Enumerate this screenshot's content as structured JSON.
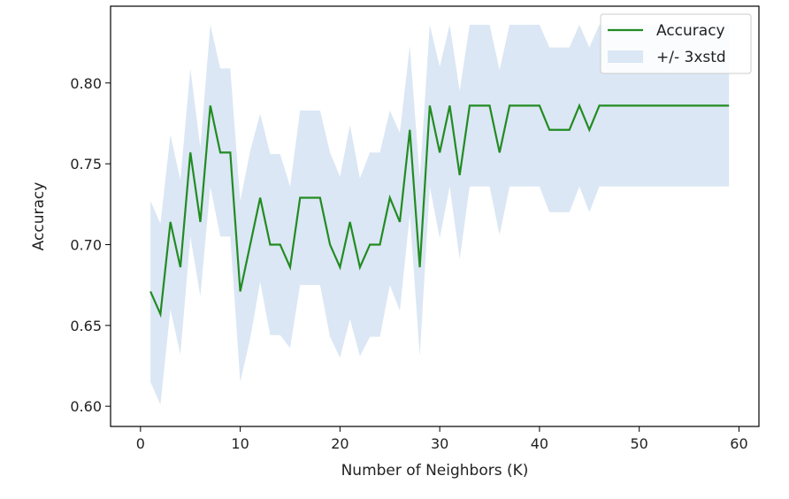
{
  "chart_data": {
    "type": "line",
    "title": "",
    "xlabel": "Number of Neighbors (K)",
    "ylabel": "Accuracy",
    "xlim": [
      -3,
      62
    ],
    "ylim": [
      0.5875,
      0.8475
    ],
    "xticks": [
      0,
      10,
      20,
      30,
      40,
      50,
      60
    ],
    "yticks": [
      0.6,
      0.65,
      0.7,
      0.75,
      0.8
    ],
    "xtick_labels": [
      "0",
      "10",
      "20",
      "30",
      "40",
      "50",
      "60"
    ],
    "ytick_labels": [
      "0.60",
      "0.65",
      "0.70",
      "0.75",
      "0.80"
    ],
    "grid": false,
    "legend_position": "upper right",
    "series": [
      {
        "name": "Accuracy",
        "color": "#228B22",
        "x": [
          1,
          2,
          3,
          4,
          5,
          6,
          7,
          8,
          9,
          10,
          11,
          12,
          13,
          14,
          15,
          16,
          17,
          18,
          19,
          20,
          21,
          22,
          23,
          24,
          25,
          26,
          27,
          28,
          29,
          30,
          31,
          32,
          33,
          34,
          35,
          36,
          37,
          38,
          39,
          40,
          41,
          42,
          43,
          44,
          45,
          46,
          47,
          48,
          49,
          50,
          51,
          52,
          53,
          54,
          55,
          56,
          57,
          58,
          59
        ],
        "y": [
          0.671,
          0.657,
          0.714,
          0.686,
          0.757,
          0.714,
          0.786,
          0.757,
          0.757,
          0.671,
          0.7,
          0.729,
          0.7,
          0.7,
          0.686,
          0.729,
          0.729,
          0.729,
          0.7,
          0.686,
          0.714,
          0.686,
          0.7,
          0.7,
          0.729,
          0.714,
          0.771,
          0.686,
          0.786,
          0.757,
          0.786,
          0.743,
          0.786,
          0.786,
          0.786,
          0.757,
          0.786,
          0.786,
          0.786,
          0.786,
          0.771,
          0.771,
          0.771,
          0.786,
          0.771,
          0.786,
          0.786,
          0.786,
          0.786,
          0.786,
          0.786,
          0.786,
          0.786,
          0.786,
          0.786,
          0.786,
          0.786,
          0.786,
          0.786
        ]
      }
    ],
    "band": {
      "name": "+/- 3xstd",
      "color": "#dbe7f4",
      "x": [
        1,
        2,
        3,
        4,
        5,
        6,
        7,
        8,
        9,
        10,
        11,
        12,
        13,
        14,
        15,
        16,
        17,
        18,
        19,
        20,
        21,
        22,
        23,
        24,
        25,
        26,
        27,
        28,
        29,
        30,
        31,
        32,
        33,
        34,
        35,
        36,
        37,
        38,
        39,
        40,
        41,
        42,
        43,
        44,
        45,
        46,
        47,
        48,
        49,
        50,
        51,
        52,
        53,
        54,
        55,
        56,
        57,
        58,
        59
      ],
      "upper": [
        0.727,
        0.713,
        0.768,
        0.74,
        0.809,
        0.76,
        0.836,
        0.809,
        0.809,
        0.727,
        0.758,
        0.781,
        0.756,
        0.756,
        0.736,
        0.783,
        0.783,
        0.783,
        0.757,
        0.742,
        0.774,
        0.741,
        0.757,
        0.757,
        0.783,
        0.769,
        0.823,
        0.741,
        0.836,
        0.81,
        0.836,
        0.795,
        0.836,
        0.836,
        0.836,
        0.808,
        0.836,
        0.836,
        0.836,
        0.836,
        0.822,
        0.822,
        0.822,
        0.836,
        0.822,
        0.836,
        0.836,
        0.836,
        0.836,
        0.836,
        0.836,
        0.836,
        0.836,
        0.836,
        0.836,
        0.836,
        0.836,
        0.836,
        0.836
      ],
      "lower": [
        0.615,
        0.601,
        0.66,
        0.632,
        0.705,
        0.668,
        0.736,
        0.705,
        0.705,
        0.615,
        0.642,
        0.677,
        0.644,
        0.644,
        0.636,
        0.675,
        0.675,
        0.675,
        0.643,
        0.63,
        0.654,
        0.631,
        0.643,
        0.643,
        0.675,
        0.659,
        0.719,
        0.631,
        0.736,
        0.704,
        0.736,
        0.691,
        0.736,
        0.736,
        0.736,
        0.706,
        0.736,
        0.736,
        0.736,
        0.736,
        0.72,
        0.72,
        0.72,
        0.736,
        0.72,
        0.736,
        0.736,
        0.736,
        0.736,
        0.736,
        0.736,
        0.736,
        0.736,
        0.736,
        0.736,
        0.736,
        0.736,
        0.736,
        0.736
      ]
    }
  }
}
